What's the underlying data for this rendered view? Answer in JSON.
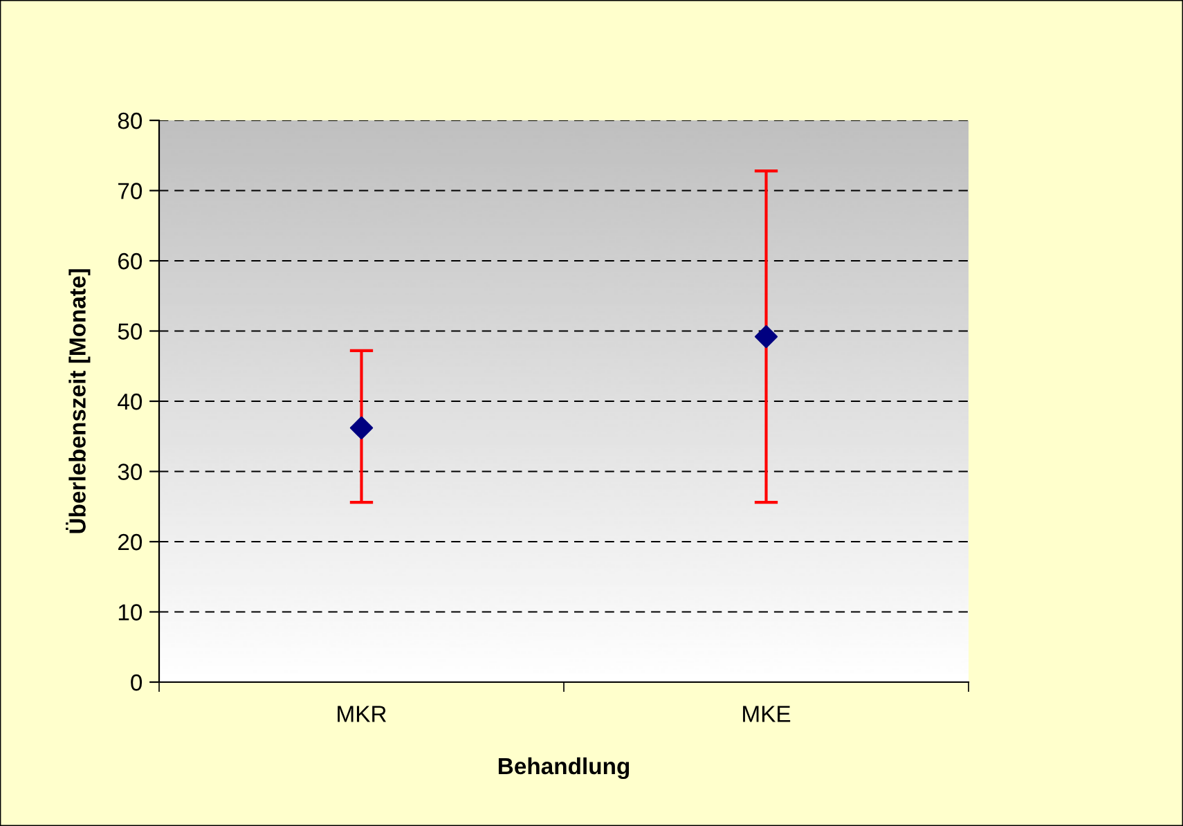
{
  "chart_data": {
    "type": "scatter",
    "xlabel": "Behandlung",
    "ylabel": "Überlebenszeit [Monate]",
    "categories": [
      "MKR",
      "MKE"
    ],
    "series": [
      {
        "color": "#000080",
        "values": [
          36.2,
          49.2
        ],
        "errors": [
          [
            25.6,
            47.2
          ],
          [
            25.6,
            72.8
          ]
        ]
      }
    ],
    "ylim": [
      0,
      80
    ],
    "yticks": [
      0,
      10,
      20,
      30,
      40,
      50,
      60,
      70,
      80
    ],
    "grid": "y",
    "marker": "diamond",
    "legend": false
  }
}
